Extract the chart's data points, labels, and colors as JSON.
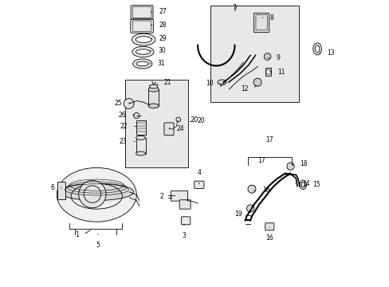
{
  "bg_color": "#ffffff",
  "line_color": "#000000",
  "gray_fill": "#e8e8e8",
  "figsize": [
    4.89,
    3.6
  ],
  "dpi": 100,
  "labels": {
    "1": [
      0.13,
      0.235,
      0.108,
      0.255
    ],
    "2": [
      0.435,
      0.685,
      0.42,
      0.7
    ],
    "3": [
      0.467,
      0.78,
      0.467,
      0.795
    ],
    "4": [
      0.515,
      0.64,
      0.515,
      0.622
    ],
    "5": [
      0.175,
      0.235,
      0.175,
      0.255
    ],
    "6": [
      0.048,
      0.49,
      0.028,
      0.49
    ],
    "7": [
      0.64,
      0.025,
      0.64,
      0.025
    ],
    "8": [
      0.73,
      0.055,
      0.745,
      0.055
    ],
    "9": [
      0.81,
      0.205,
      0.825,
      0.205
    ],
    "10": [
      0.663,
      0.23,
      0.645,
      0.23
    ],
    "11": [
      0.805,
      0.255,
      0.825,
      0.255
    ],
    "12": [
      0.735,
      0.285,
      0.72,
      0.305
    ],
    "13": [
      0.932,
      0.175,
      0.95,
      0.175
    ],
    "14": [
      0.852,
      0.69,
      0.87,
      0.69
    ],
    "15": [
      0.875,
      0.645,
      0.898,
      0.645
    ],
    "16": [
      0.78,
      0.785,
      0.78,
      0.8
    ],
    "17": [
      0.735,
      0.51,
      0.735,
      0.51
    ],
    "18a": [
      0.85,
      0.545,
      0.868,
      0.545
    ],
    "18b": [
      0.747,
      0.66,
      0.73,
      0.66
    ],
    "19": [
      0.718,
      0.73,
      0.7,
      0.745
    ],
    "20": [
      0.49,
      0.42,
      0.508,
      0.42
    ],
    "21": [
      0.393,
      0.108,
      0.408,
      0.095
    ],
    "22": [
      0.32,
      0.43,
      0.298,
      0.43
    ],
    "23": [
      0.312,
      0.49,
      0.292,
      0.49
    ],
    "24": [
      0.415,
      0.46,
      0.432,
      0.46
    ],
    "25": [
      0.295,
      0.36,
      0.272,
      0.36
    ],
    "26": [
      0.3,
      0.398,
      0.278,
      0.398
    ],
    "27": [
      0.358,
      0.04,
      0.378,
      0.04
    ],
    "28": [
      0.358,
      0.085,
      0.378,
      0.085
    ],
    "29": [
      0.358,
      0.13,
      0.378,
      0.13
    ],
    "30": [
      0.358,
      0.172,
      0.378,
      0.172
    ],
    "31": [
      0.358,
      0.215,
      0.378,
      0.215
    ]
  }
}
